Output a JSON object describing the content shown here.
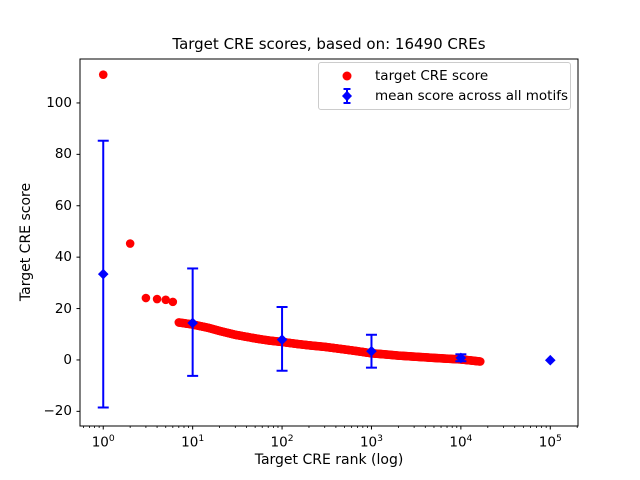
{
  "figure": {
    "title": "Target CRE scores, based on: 16490 CREs",
    "xlabel": "Target CRE rank (log)",
    "ylabel": "Target CRE score"
  },
  "legend": {
    "position": "upper right",
    "items": [
      {
        "label": "target CRE score",
        "marker": "red-circle",
        "color": "#ff0000"
      },
      {
        "label": "mean score across all motifs",
        "marker": "blue-diamond-errorbar",
        "color": "#0000ff"
      }
    ]
  },
  "chart_data": {
    "type": "scatter",
    "title": "Target CRE scores, based on: 16490 CREs",
    "xlabel": "Target CRE rank (log)",
    "ylabel": "Target CRE score",
    "x_scale": "log",
    "grid": false,
    "n_cres": 16490,
    "x_tick_exponents": [
      0,
      1,
      2,
      3,
      4,
      5
    ],
    "y_ticks": [
      -20,
      0,
      20,
      40,
      60,
      80,
      100
    ],
    "x_log10_view_range": [
      -0.26,
      5.31
    ],
    "y_view_range": [
      -25.7,
      117.1
    ],
    "series": [
      {
        "name": "target CRE score",
        "color": "#ff0000",
        "marker": "circle",
        "marker_radius_px": 4.3,
        "head_points": [
          [
            1,
            111
          ],
          [
            2,
            45.3
          ],
          [
            3,
            24.1
          ],
          [
            4,
            23.7
          ],
          [
            5,
            23.4
          ],
          [
            6,
            22.6
          ]
        ],
        "curve_anchors": [
          [
            7,
            14.6
          ],
          [
            8,
            14.3
          ],
          [
            10,
            13.8
          ],
          [
            15,
            12.5
          ],
          [
            20,
            11.3
          ],
          [
            30,
            9.8
          ],
          [
            50,
            8.4
          ],
          [
            70,
            7.6
          ],
          [
            100,
            7.0
          ],
          [
            150,
            6.2
          ],
          [
            200,
            5.7
          ],
          [
            300,
            5.1
          ],
          [
            500,
            4.1
          ],
          [
            700,
            3.4
          ],
          [
            1000,
            2.6
          ],
          [
            1500,
            2.1
          ],
          [
            2000,
            1.7
          ],
          [
            3000,
            1.3
          ],
          [
            5000,
            0.8
          ],
          [
            7000,
            0.5
          ],
          [
            10000,
            0.2
          ],
          [
            13000,
            -0.2
          ],
          [
            16490,
            -0.6
          ]
        ],
        "max_rank": 16490
      },
      {
        "name": "mean score across all motifs",
        "color": "#0000ff",
        "marker": "diamond",
        "points": [
          {
            "rank": 1,
            "mean": 33.4,
            "lo": -18.5,
            "hi": 85.3
          },
          {
            "rank": 10,
            "mean": 14.4,
            "lo": -6.2,
            "hi": 35.6
          },
          {
            "rank": 100,
            "mean": 7.9,
            "lo": -4.2,
            "hi": 20.6
          },
          {
            "rank": 1000,
            "mean": 3.4,
            "lo": -3.0,
            "hi": 9.8
          },
          {
            "rank": 10000,
            "mean": 0.8,
            "lo": -0.5,
            "hi": 2.2
          },
          {
            "rank": 100000,
            "mean": -0.1,
            "lo": -0.1,
            "hi": -0.1
          }
        ]
      }
    ]
  }
}
